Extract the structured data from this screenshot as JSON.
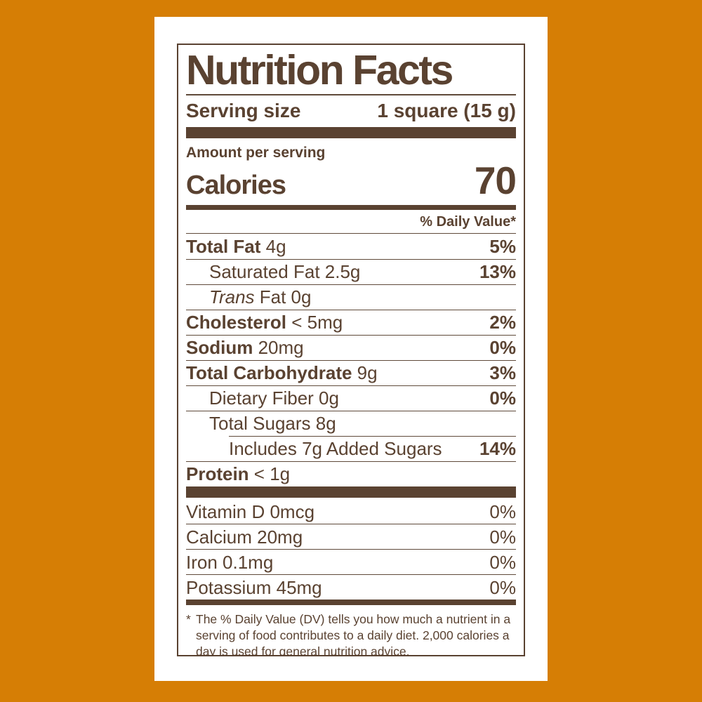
{
  "colors": {
    "orange": "#d67e05",
    "brown": "#5a4231",
    "paper": "#ffffff",
    "line": "#5f4a3a"
  },
  "label": {
    "title": "Nutrition Facts",
    "serving": {
      "label": "Serving size",
      "value": "1 square (15 g)"
    },
    "amount_per_serving": "Amount per serving",
    "calories": {
      "label": "Calories",
      "value": "70"
    },
    "daily_value_header": "% Daily Value*",
    "nutrients": [
      {
        "bold": "Total Fat",
        "italic": "",
        "normal": " 4g",
        "dv": "5%",
        "dv_bold": true,
        "indent": 0,
        "sep": "full"
      },
      {
        "bold": "",
        "italic": "",
        "normal": "Saturated Fat 2.5g",
        "dv": "13%",
        "dv_bold": true,
        "indent": 1,
        "sep": "full"
      },
      {
        "bold": "",
        "italic": "Trans",
        "normal": " Fat 0g",
        "dv": "",
        "dv_bold": false,
        "indent": 1,
        "sep": "full"
      },
      {
        "bold": "Cholesterol",
        "italic": "",
        "normal": " < 5mg",
        "dv": "2%",
        "dv_bold": true,
        "indent": 0,
        "sep": "full"
      },
      {
        "bold": "Sodium",
        "italic": "",
        "normal": " 20mg",
        "dv": "0%",
        "dv_bold": true,
        "indent": 0,
        "sep": "full"
      },
      {
        "bold": "Total Carbohydrate",
        "italic": "",
        "normal": " 9g",
        "dv": "3%",
        "dv_bold": true,
        "indent": 0,
        "sep": "full"
      },
      {
        "bold": "",
        "italic": "",
        "normal": "Dietary Fiber 0g",
        "dv": "0%",
        "dv_bold": true,
        "indent": 1,
        "sep": "full"
      },
      {
        "bold": "",
        "italic": "",
        "normal": "Total Sugars 8g",
        "dv": "",
        "dv_bold": false,
        "indent": 1,
        "sep": "full"
      },
      {
        "bold": "",
        "italic": "",
        "normal": "Includes 7g Added Sugars",
        "dv": "14%",
        "dv_bold": true,
        "indent": 0,
        "sep": "indent"
      },
      {
        "bold": "Protein",
        "italic": "",
        "normal": " < 1g",
        "dv": "",
        "dv_bold": false,
        "indent": 0,
        "sep": "full"
      }
    ],
    "vitamins": [
      {
        "text": "Vitamin D 0mcg",
        "dv": "0%"
      },
      {
        "text": "Calcium 20mg",
        "dv": "0%"
      },
      {
        "text": "Iron 0.1mg",
        "dv": "0%"
      },
      {
        "text": "Potassium 45mg",
        "dv": "0%"
      }
    ],
    "footnote": {
      "marker": "*",
      "text": "The % Daily Value (DV) tells you how much a nutrient in a serving of food contributes to a daily diet. 2,000 calories a day is used for general nutrition advice."
    }
  }
}
